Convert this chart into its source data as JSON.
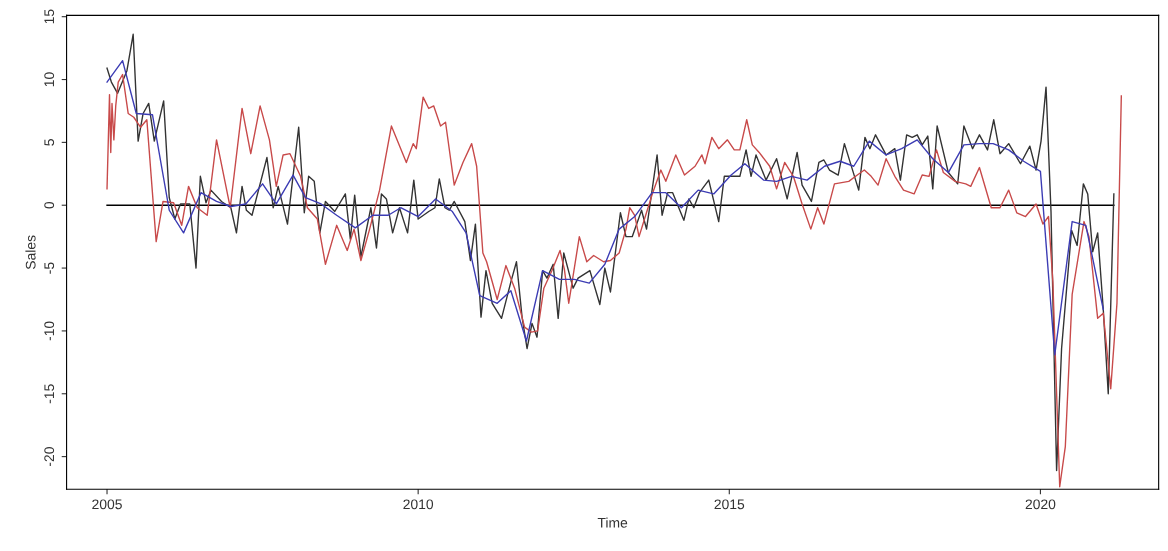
{
  "chart_data": {
    "type": "line",
    "xlabel": "Time",
    "ylabel": "Sales",
    "xlim": [
      2004.35,
      2021.9
    ],
    "xticks": [
      2005,
      2010,
      2015,
      2020
    ],
    "ylim": [
      -22.6,
      15.1
    ],
    "yticks": [
      -20,
      -15,
      -10,
      -5,
      0,
      5,
      10,
      15
    ],
    "grid": false,
    "legend": false,
    "marker": "none",
    "line_style": "solid",
    "series": [
      {
        "color": "#000000",
        "x": [
          2005,
          2021.18
        ],
        "values": [
          0,
          0
        ]
      },
      {
        "color": "#333333",
        "x": [
          2005.0,
          2005.07,
          2005.17,
          2005.32,
          2005.42,
          2005.5,
          2005.58,
          2005.67,
          2005.76,
          2005.91,
          2006.0,
          2006.09,
          2006.18,
          2006.33,
          2006.43,
          2006.5,
          2006.59,
          2006.67,
          2006.84,
          2006.99,
          2007.08,
          2007.17,
          2007.24,
          2007.33,
          2007.57,
          2007.67,
          2007.75,
          2007.9,
          2008.08,
          2008.17,
          2008.24,
          2008.33,
          2008.42,
          2008.51,
          2008.66,
          2008.83,
          2008.91,
          2008.98,
          2009.08,
          2009.24,
          2009.33,
          2009.41,
          2009.49,
          2009.59,
          2009.7,
          2009.83,
          2009.93,
          2010.0,
          2010.17,
          2010.27,
          2010.34,
          2010.43,
          2010.5,
          2010.58,
          2010.75,
          2010.84,
          2010.92,
          2011.01,
          2011.09,
          2011.19,
          2011.34,
          2011.49,
          2011.58,
          2011.67,
          2011.75,
          2011.83,
          2011.91,
          2012.0,
          2012.07,
          2012.17,
          2012.25,
          2012.34,
          2012.49,
          2012.57,
          2012.76,
          2012.92,
          2013.0,
          2013.09,
          2013.25,
          2013.34,
          2013.44,
          2013.59,
          2013.67,
          2013.84,
          2013.92,
          2014.01,
          2014.09,
          2014.27,
          2014.35,
          2014.43,
          2014.52,
          2014.67,
          2014.83,
          2014.92,
          2015.08,
          2015.17,
          2015.27,
          2015.35,
          2015.43,
          2015.59,
          2015.76,
          2015.93,
          2016.09,
          2016.17,
          2016.32,
          2016.44,
          2016.52,
          2016.61,
          2016.75,
          2016.85,
          2017.08,
          2017.18,
          2017.26,
          2017.35,
          2017.52,
          2017.66,
          2017.75,
          2017.85,
          2017.94,
          2018.02,
          2018.1,
          2018.19,
          2018.27,
          2018.34,
          2018.52,
          2018.67,
          2018.77,
          2018.91,
          2019.02,
          2019.15,
          2019.25,
          2019.35,
          2019.49,
          2019.68,
          2019.83,
          2019.93,
          2020.01,
          2020.09,
          2020.17,
          2020.26,
          2020.34,
          2020.5,
          2020.59,
          2020.69,
          2020.76,
          2020.84,
          2020.92,
          2021.01,
          2021.09,
          2021.18
        ],
        "values": [
          10.9,
          9.8,
          8.9,
          10.7,
          13.6,
          5.1,
          7.3,
          8.1,
          5.1,
          8.3,
          0.6,
          -1.1,
          0.1,
          0.1,
          -5.0,
          2.3,
          0.2,
          1.2,
          0.3,
          -0.2,
          -2.2,
          1.5,
          -0.4,
          -0.8,
          3.8,
          -0.2,
          1.5,
          -1.5,
          6.2,
          -0.6,
          2.3,
          1.9,
          -2.2,
          0.3,
          -0.5,
          0.9,
          -2.7,
          0.8,
          -4.1,
          -0.2,
          -3.4,
          0.9,
          0.5,
          -2.2,
          -0.2,
          -2.2,
          2.0,
          -1.1,
          -0.5,
          -0.2,
          2.1,
          -0.2,
          -0.4,
          0.3,
          -1.3,
          -4.4,
          -1.5,
          -8.9,
          -5.2,
          -7.8,
          -9.0,
          -6.1,
          -4.5,
          -8.9,
          -11.4,
          -9.4,
          -10.5,
          -5.2,
          -5.8,
          -4.7,
          -9.0,
          -3.8,
          -6.6,
          -5.8,
          -5.2,
          -7.9,
          -5.0,
          -6.9,
          -0.6,
          -2.5,
          -2.5,
          -0.4,
          -1.9,
          4.0,
          -0.8,
          1.0,
          1.0,
          -1.2,
          0.5,
          -0.2,
          1.0,
          2.0,
          -1.3,
          2.3,
          2.3,
          2.3,
          4.4,
          2.3,
          4.0,
          2.0,
          3.7,
          0.5,
          4.2,
          1.6,
          0.3,
          3.4,
          3.6,
          2.8,
          2.4,
          4.9,
          1.2,
          5.4,
          4.5,
          5.6,
          4.0,
          4.5,
          2.0,
          5.6,
          5.4,
          5.6,
          4.8,
          5.5,
          1.3,
          6.3,
          2.6,
          1.7,
          6.3,
          4.5,
          5.6,
          4.4,
          6.8,
          4.1,
          4.9,
          3.3,
          4.7,
          2.8,
          5.1,
          9.4,
          -0.5,
          -21.1,
          -11.4,
          -2.0,
          -3.2,
          1.7,
          0.9,
          -3.7,
          -2.2,
          -8.3,
          -15.0,
          0.9
        ]
      },
      {
        "color": "#c84a4a",
        "x": [
          2005.0,
          2005.04,
          2005.06,
          2005.08,
          2005.11,
          2005.14,
          2005.18,
          2005.25,
          2005.34,
          2005.43,
          2005.54,
          2005.64,
          2005.79,
          2005.9,
          2006.07,
          2006.2,
          2006.31,
          2006.45,
          2006.61,
          2006.76,
          2006.98,
          2007.17,
          2007.31,
          2007.46,
          2007.61,
          2007.72,
          2007.83,
          2007.94,
          2008.11,
          2008.22,
          2008.38,
          2008.51,
          2008.69,
          2008.86,
          2008.97,
          2009.08,
          2009.22,
          2009.38,
          2009.57,
          2009.81,
          2009.92,
          2009.97,
          2010.08,
          2010.17,
          2010.25,
          2010.36,
          2010.44,
          2010.58,
          2010.72,
          2010.86,
          2010.94,
          2011.04,
          2011.1,
          2011.27,
          2011.41,
          2011.55,
          2011.71,
          2011.82,
          2011.92,
          2012.02,
          2012.15,
          2012.28,
          2012.35,
          2012.42,
          2012.59,
          2012.71,
          2012.82,
          2012.98,
          2013.09,
          2013.23,
          2013.34,
          2013.4,
          2013.48,
          2013.55,
          2013.65,
          2013.77,
          2013.9,
          2013.98,
          2014.14,
          2014.28,
          2014.45,
          2014.56,
          2014.61,
          2014.72,
          2014.83,
          2014.97,
          2015.08,
          2015.17,
          2015.28,
          2015.37,
          2015.48,
          2015.65,
          2015.76,
          2015.89,
          2016.03,
          2016.17,
          2016.31,
          2016.42,
          2016.52,
          2016.69,
          2016.92,
          2017.03,
          2017.17,
          2017.28,
          2017.39,
          2017.52,
          2017.66,
          2017.8,
          2017.97,
          2018.1,
          2018.21,
          2018.33,
          2018.44,
          2018.63,
          2018.8,
          2018.88,
          2019.02,
          2019.21,
          2019.35,
          2019.49,
          2019.62,
          2019.76,
          2019.93,
          2020.04,
          2020.13,
          2020.2,
          2020.31,
          2020.4,
          2020.51,
          2020.7,
          2020.78,
          2020.92,
          2021.01,
          2021.13,
          2021.23,
          2021.3
        ],
        "values": [
          1.3,
          8.8,
          4.2,
          8.1,
          5.2,
          7.9,
          9.8,
          10.4,
          7.3,
          7.0,
          6.2,
          6.8,
          -2.9,
          0.3,
          0.2,
          -1.6,
          1.5,
          -0.2,
          -0.8,
          5.2,
          -0.2,
          7.7,
          4.1,
          7.9,
          5.2,
          1.5,
          4.0,
          4.1,
          2.3,
          -0.2,
          -1.1,
          -4.7,
          -1.6,
          -3.6,
          -1.9,
          -4.4,
          -1.9,
          1.2,
          6.3,
          3.4,
          4.9,
          4.5,
          8.6,
          7.7,
          7.9,
          6.3,
          6.6,
          1.6,
          3.4,
          4.9,
          3.1,
          -3.8,
          -4.5,
          -7.5,
          -4.8,
          -6.6,
          -9.7,
          -10.1,
          -10.0,
          -6.6,
          -5.2,
          -3.6,
          -5.1,
          -7.8,
          -2.5,
          -4.5,
          -4.0,
          -4.5,
          -4.4,
          -3.8,
          -1.9,
          -0.2,
          -0.8,
          -2.5,
          -0.9,
          1.0,
          2.8,
          1.9,
          4.0,
          2.4,
          3.1,
          4.0,
          3.3,
          5.4,
          4.5,
          5.2,
          4.4,
          4.4,
          6.8,
          4.8,
          4.2,
          3.1,
          1.3,
          3.4,
          2.3,
          0.1,
          -1.9,
          -0.2,
          -1.5,
          1.7,
          1.9,
          2.3,
          2.8,
          2.3,
          1.6,
          3.7,
          2.3,
          1.2,
          0.9,
          2.4,
          2.3,
          4.4,
          2.6,
          1.9,
          1.7,
          1.5,
          3.0,
          -0.2,
          -0.2,
          1.2,
          -0.6,
          -0.9,
          0.1,
          -1.5,
          -0.9,
          -6.1,
          -22.4,
          -19.2,
          -7.1,
          -1.3,
          -2.5,
          -9.0,
          -8.6,
          -14.6,
          -7.8,
          8.7
        ]
      },
      {
        "color": "#3c3cb4",
        "x": [
          2005.0,
          2005.25,
          2005.47,
          2005.73,
          2006.0,
          2006.23,
          2006.51,
          2006.76,
          2006.99,
          2007.23,
          2007.5,
          2007.72,
          2007.99,
          2008.19,
          2008.44,
          2008.69,
          2008.99,
          2009.27,
          2009.52,
          2009.72,
          2010.0,
          2010.28,
          2010.55,
          2010.77,
          2010.99,
          2011.27,
          2011.49,
          2011.74,
          2012.0,
          2012.27,
          2012.51,
          2012.75,
          2013.0,
          2013.23,
          2013.48,
          2013.76,
          2013.98,
          2014.23,
          2014.5,
          2014.75,
          2015.03,
          2015.25,
          2015.55,
          2015.76,
          2016.0,
          2016.25,
          2016.53,
          2016.78,
          2017.0,
          2017.25,
          2017.52,
          2017.77,
          2018.02,
          2018.27,
          2018.52,
          2018.77,
          2019.02,
          2019.24,
          2019.49,
          2019.73,
          2020.0,
          2020.23,
          2020.51,
          2020.73,
          2021.01
        ],
        "values": [
          9.8,
          11.5,
          7.3,
          7.2,
          -0.4,
          -2.2,
          1.0,
          0.3,
          -0.1,
          0.1,
          1.7,
          0.1,
          2.4,
          0.6,
          0.1,
          -0.8,
          -1.8,
          -0.8,
          -0.8,
          -0.2,
          -0.9,
          0.5,
          -0.5,
          -2.2,
          -7.2,
          -7.8,
          -6.8,
          -10.8,
          -5.2,
          -5.9,
          -5.9,
          -6.2,
          -4.7,
          -1.9,
          -0.9,
          1.0,
          1.0,
          -0.2,
          1.2,
          0.9,
          2.4,
          3.3,
          2.0,
          1.9,
          2.3,
          2.0,
          3.1,
          3.5,
          3.1,
          5.1,
          4.0,
          4.5,
          5.2,
          3.7,
          2.6,
          4.8,
          4.9,
          4.9,
          4.4,
          3.5,
          2.7,
          -11.9,
          -1.3,
          -1.6,
          -8.3
        ]
      }
    ]
  }
}
